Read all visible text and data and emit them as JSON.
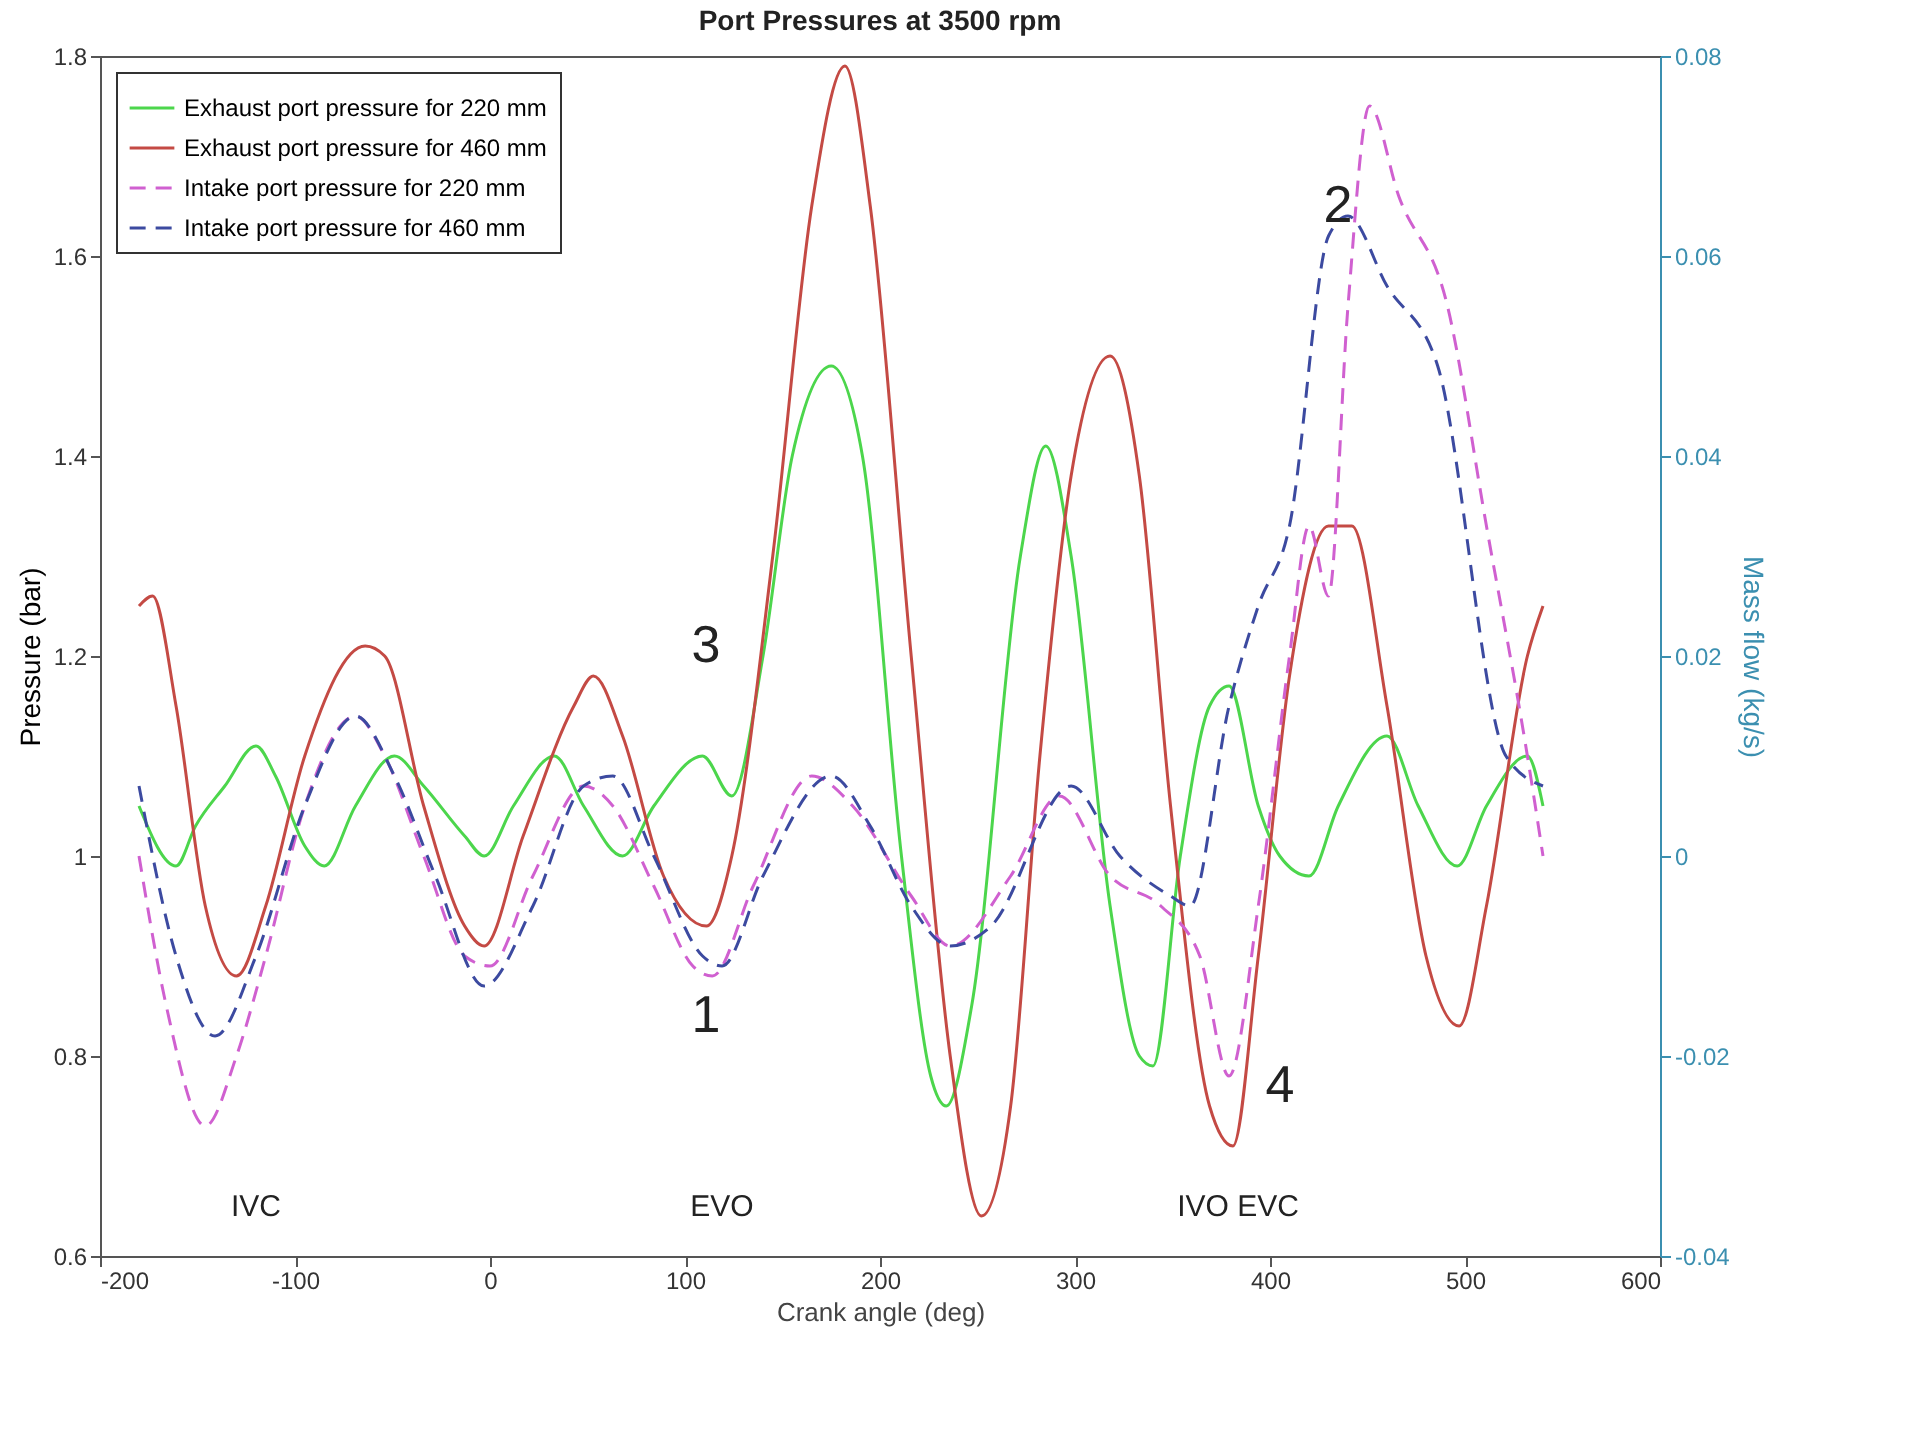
{
  "chart_data": {
    "type": "line",
    "title": "Port Pressures at 3500 rpm",
    "xlabel": "Crank angle (deg)",
    "ylabel": "Pressure (bar)",
    "y2label": "Mass flow (kg/s)",
    "xlim": [
      -200,
      600
    ],
    "xticks": [
      -200,
      -100,
      0,
      100,
      200,
      300,
      400,
      500,
      600
    ],
    "ylim": [
      0.6,
      1.8
    ],
    "yticks": [
      0.6,
      0.8,
      {
        "value": 1,
        "label": "1"
      },
      1.2,
      1.4,
      1.6,
      1.8
    ],
    "y2lim": [
      -0.04,
      0.08
    ],
    "y2ticks": [
      -0.04,
      -0.02,
      {
        "value": 0,
        "label": "0"
      },
      0.02,
      0.04,
      0.06,
      0.08
    ],
    "grid": false,
    "legend": "top left",
    "series": [
      {
        "name": "Exhaust port pressure for 220 mm",
        "color": "#4cd64c",
        "line_style": "solid",
        "x": [
          -180,
          -161,
          -151,
          -136,
          -120,
          -110,
          -95,
          -85,
          -69,
          -49,
          -34,
          -13,
          -3,
          12,
          33,
          48,
          68,
          84,
          109,
          124,
          140,
          155,
          175,
          191,
          211,
          226,
          234,
          247,
          272,
          285,
          298,
          318,
          333,
          340,
          354,
          369,
          379,
          394,
          405,
          420,
          435,
          460,
          476,
          496,
          511,
          532,
          540
        ],
        "values": [
          1.05,
          0.99,
          1.03,
          1.07,
          1.11,
          1.08,
          1.01,
          0.99,
          1.05,
          1.1,
          1.07,
          1.02,
          1.0,
          1.05,
          1.1,
          1.05,
          1.0,
          1.05,
          1.1,
          1.06,
          1.2,
          1.4,
          1.49,
          1.4,
          1.0,
          0.78,
          0.75,
          0.85,
          1.3,
          1.41,
          1.3,
          0.95,
          0.8,
          0.79,
          1.0,
          1.15,
          1.17,
          1.05,
          1.0,
          0.98,
          1.05,
          1.12,
          1.05,
          0.99,
          1.05,
          1.1,
          1.05
        ]
      },
      {
        "name": "Exhaust port pressure for 460 mm",
        "color": "#c44a44",
        "line_style": "solid",
        "x": [
          -180,
          -173,
          -161,
          -146,
          -130,
          -115,
          -95,
          -64,
          -54,
          -34,
          -13,
          -3,
          17,
          43,
          53,
          68,
          89,
          111,
          124,
          145,
          165,
          182,
          195,
          216,
          236,
          252,
          267,
          282,
          298,
          318,
          333,
          349,
          369,
          381,
          394,
          410,
          430,
          442,
          460,
          480,
          497,
          511,
          532,
          540
        ],
        "values": [
          1.25,
          1.26,
          1.15,
          0.95,
          0.88,
          0.95,
          1.1,
          1.21,
          1.2,
          1.05,
          0.93,
          0.91,
          1.02,
          1.15,
          1.18,
          1.12,
          0.98,
          0.93,
          1.0,
          1.3,
          1.65,
          1.79,
          1.65,
          1.2,
          0.8,
          0.64,
          0.75,
          1.1,
          1.38,
          1.5,
          1.38,
          1.05,
          0.75,
          0.71,
          0.9,
          1.18,
          1.33,
          1.33,
          1.15,
          0.9,
          0.83,
          0.95,
          1.2,
          1.25
        ]
      },
      {
        "name": "Intake port pressure for 220 mm",
        "color": "#d060d0",
        "line_style": "dashed",
        "x": [
          -180,
          -166,
          -146,
          -130,
          -115,
          -95,
          -69,
          -54,
          -34,
          -13,
          0,
          22,
          48,
          63,
          84,
          104,
          114,
          135,
          165,
          186,
          216,
          236,
          267,
          292,
          318,
          344,
          364,
          379,
          394,
          410,
          420,
          430,
          440,
          451,
          466,
          491,
          511,
          532,
          540
        ],
        "values": [
          1.0,
          0.85,
          0.73,
          0.8,
          0.9,
          1.05,
          1.14,
          1.1,
          1.0,
          0.9,
          0.89,
          0.98,
          1.07,
          1.05,
          0.97,
          0.89,
          0.88,
          0.97,
          1.08,
          1.05,
          0.96,
          0.91,
          0.98,
          1.06,
          0.98,
          0.95,
          0.9,
          0.78,
          0.95,
          1.2,
          1.33,
          1.26,
          1.55,
          1.75,
          1.66,
          1.55,
          1.33,
          1.1,
          1.0
        ]
      },
      {
        "name": "Intake port pressure for 460 mm",
        "color": "#3c4aa0",
        "line_style": "dashed",
        "x": [
          -180,
          -161,
          -141,
          -120,
          -95,
          -69,
          -49,
          -28,
          -3,
          22,
          48,
          63,
          84,
          109,
          119,
          140,
          175,
          195,
          216,
          236,
          257,
          298,
          323,
          349,
          359,
          379,
          394,
          410,
          430,
          440,
          460,
          486,
          521,
          540
        ],
        "values": [
          1.07,
          0.9,
          0.82,
          0.9,
          1.05,
          1.14,
          1.08,
          0.98,
          0.87,
          0.95,
          1.07,
          1.08,
          1.0,
          0.9,
          0.89,
          0.98,
          1.08,
          1.03,
          0.95,
          0.91,
          0.93,
          1.07,
          1.0,
          0.96,
          0.95,
          1.15,
          1.25,
          1.33,
          1.62,
          1.64,
          1.57,
          1.49,
          1.1,
          1.07
        ]
      }
    ],
    "annotations": [
      "1",
      "2",
      "3",
      "4",
      "IVC",
      "EVO",
      "IVO EVC"
    ]
  }
}
